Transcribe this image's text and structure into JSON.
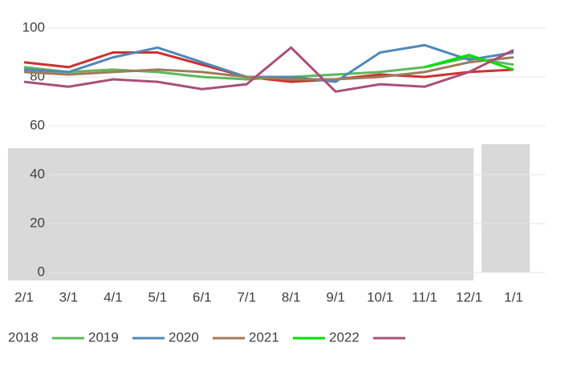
{
  "chart_data": {
    "type": "line",
    "categories": [
      "2/1",
      "3/1",
      "4/1",
      "5/1",
      "6/1",
      "7/1",
      "8/1",
      "9/1",
      "10/1",
      "11/1",
      "12/1",
      "1/1"
    ],
    "series": [
      {
        "name": "2018",
        "color": "#d03030",
        "values": [
          86,
          84,
          90,
          90,
          85,
          80,
          78,
          79,
          81,
          80,
          82,
          83
        ]
      },
      {
        "name": "2019",
        "color": "#5cb85c",
        "values": [
          84,
          82,
          83,
          82,
          80,
          79,
          80,
          81,
          82,
          84,
          88,
          85
        ]
      },
      {
        "name": "2020",
        "color": "#4f88b8",
        "values": [
          83,
          82,
          88,
          92,
          86,
          80,
          80,
          78,
          90,
          93,
          87,
          90
        ]
      },
      {
        "name": "2021",
        "color": "#a07a5a",
        "values": [
          82,
          81,
          82,
          83,
          82,
          80,
          79,
          79,
          80,
          82,
          86,
          88
        ]
      },
      {
        "name": "2022",
        "color": "#00e000",
        "values": [
          null,
          null,
          null,
          null,
          null,
          null,
          null,
          null,
          null,
          84,
          89,
          83
        ]
      },
      {
        "color": "#a8507a",
        "values": [
          78,
          76,
          79,
          78,
          75,
          77,
          92,
          74,
          77,
          76,
          82,
          91
        ]
      }
    ],
    "ylim": [
      0,
      100
    ],
    "yticks": [
      0,
      20,
      40,
      60,
      80,
      100
    ]
  }
}
